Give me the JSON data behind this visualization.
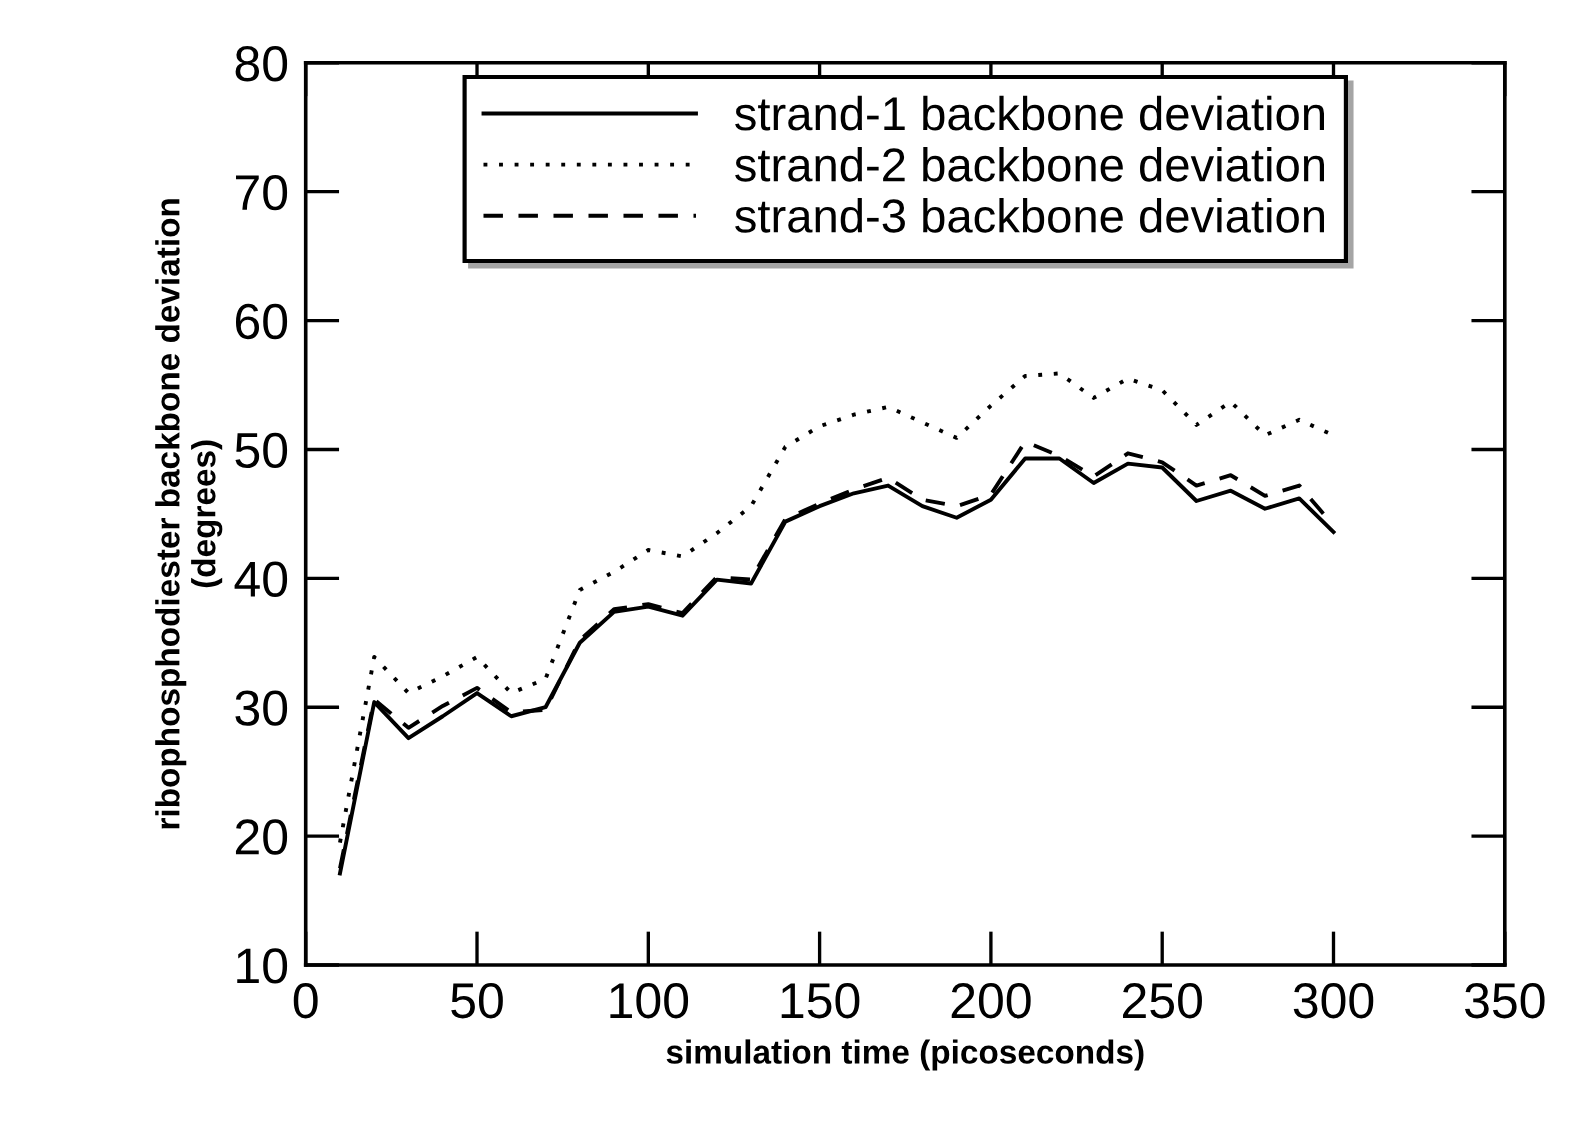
{
  "chart_data": {
    "type": "line",
    "xlabel": "simulation time (picoseconds)",
    "ylabel": "ribophosphodiester backbone deviation\n(degrees)",
    "x": [
      10,
      20,
      30,
      40,
      50,
      60,
      70,
      80,
      90,
      100,
      110,
      120,
      130,
      140,
      150,
      160,
      170,
      180,
      190,
      200,
      210,
      220,
      230,
      240,
      250,
      260,
      270,
      280,
      290,
      300
    ],
    "series": [
      {
        "name": "strand-1 backbone deviation",
        "color": "#000000",
        "line_style": "solid",
        "values": [
          17.1,
          30.4,
          27.6,
          29.3,
          31.1,
          29.3,
          30.0,
          35.0,
          37.4,
          37.8,
          37.1,
          39.9,
          39.6,
          44.4,
          45.6,
          46.6,
          47.2,
          45.6,
          44.7,
          46.1,
          49.3,
          49.3,
          47.4,
          48.9,
          48.6,
          46.0,
          46.8,
          45.4,
          46.2,
          43.6
        ]
      },
      {
        "name": "strand-2 backbone deviation",
        "color": "#000000",
        "line_style": "dotted",
        "values": [
          19.5,
          33.9,
          31.1,
          32.4,
          33.9,
          31.1,
          32.2,
          39.1,
          40.5,
          42.2,
          41.7,
          43.5,
          45.6,
          50.2,
          51.8,
          52.7,
          53.3,
          52.1,
          50.9,
          53.4,
          55.7,
          55.9,
          54.0,
          55.5,
          54.6,
          51.9,
          53.7,
          51.1,
          52.3,
          51.1
        ]
      },
      {
        "name": "strand-3 backbone deviation",
        "color": "#000000",
        "line_style": "dashed",
        "values": [
          17.5,
          30.6,
          28.4,
          30.1,
          31.5,
          29.6,
          29.8,
          35.2,
          37.6,
          38.0,
          37.3,
          40.1,
          39.9,
          44.6,
          45.8,
          46.9,
          47.8,
          46.1,
          45.6,
          46.5,
          50.6,
          49.5,
          47.9,
          49.7,
          49.0,
          47.2,
          48.0,
          46.4,
          47.2,
          44.1
        ]
      }
    ],
    "xlim": [
      0,
      350
    ],
    "xticks": [
      0,
      50,
      100,
      150,
      200,
      250,
      300,
      350
    ],
    "ylim": [
      10,
      80
    ],
    "yticks": [
      10,
      20,
      30,
      40,
      50,
      60,
      70,
      80
    ],
    "grid": false,
    "legend": "top",
    "marker": "none"
  }
}
